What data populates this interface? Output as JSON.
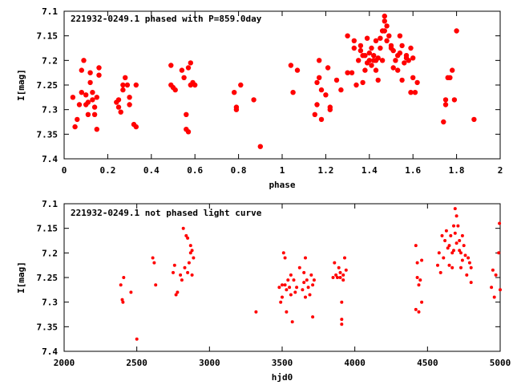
{
  "chart_data": [
    {
      "type": "scatter",
      "title": "221932-0249.1 phased with P=859.0day",
      "xlabel": "phase",
      "ylabel": "I[mag]",
      "xlim": [
        0,
        2
      ],
      "ylim": [
        7.4,
        7.1
      ],
      "x_ticks": [
        "0",
        "0.2",
        "0.4",
        "0.6",
        "0.8",
        "1",
        "1.2",
        "1.4",
        "1.6",
        "1.8",
        "2"
      ],
      "y_ticks": [
        "7.1",
        "7.15",
        "7.2",
        "7.25",
        "7.3",
        "7.35",
        "7.4"
      ],
      "y_inverted": true,
      "color": "#ff0000",
      "marker": "filled-circle-large",
      "points": [
        [
          0.04,
          7.275
        ],
        [
          0.05,
          7.335
        ],
        [
          0.06,
          7.32
        ],
        [
          0.07,
          7.29
        ],
        [
          0.08,
          7.265
        ],
        [
          0.08,
          7.22
        ],
        [
          0.09,
          7.2
        ],
        [
          0.1,
          7.27
        ],
        [
          0.1,
          7.29
        ],
        [
          0.11,
          7.285
        ],
        [
          0.11,
          7.31
        ],
        [
          0.12,
          7.225
        ],
        [
          0.12,
          7.245
        ],
        [
          0.13,
          7.265
        ],
        [
          0.13,
          7.28
        ],
        [
          0.14,
          7.295
        ],
        [
          0.14,
          7.31
        ],
        [
          0.15,
          7.275
        ],
        [
          0.15,
          7.34
        ],
        [
          0.16,
          7.215
        ],
        [
          0.16,
          7.23
        ],
        [
          0.24,
          7.285
        ],
        [
          0.25,
          7.28
        ],
        [
          0.25,
          7.295
        ],
        [
          0.26,
          7.305
        ],
        [
          0.27,
          7.26
        ],
        [
          0.27,
          7.25
        ],
        [
          0.28,
          7.235
        ],
        [
          0.29,
          7.25
        ],
        [
          0.3,
          7.275
        ],
        [
          0.3,
          7.29
        ],
        [
          0.32,
          7.33
        ],
        [
          0.33,
          7.335
        ],
        [
          0.33,
          7.25
        ],
        [
          0.49,
          7.25
        ],
        [
          0.49,
          7.21
        ],
        [
          0.5,
          7.255
        ],
        [
          0.51,
          7.26
        ],
        [
          0.54,
          7.22
        ],
        [
          0.55,
          7.235
        ],
        [
          0.56,
          7.31
        ],
        [
          0.56,
          7.34
        ],
        [
          0.57,
          7.345
        ],
        [
          0.57,
          7.215
        ],
        [
          0.58,
          7.25
        ],
        [
          0.58,
          7.205
        ],
        [
          0.59,
          7.245
        ],
        [
          0.6,
          7.25
        ],
        [
          0.78,
          7.265
        ],
        [
          0.79,
          7.295
        ],
        [
          0.79,
          7.3
        ],
        [
          0.81,
          7.25
        ],
        [
          0.87,
          7.28
        ],
        [
          0.9,
          7.375
        ],
        [
          1.04,
          7.21
        ],
        [
          1.05,
          7.265
        ],
        [
          1.07,
          7.22
        ],
        [
          1.15,
          7.31
        ],
        [
          1.16,
          7.29
        ],
        [
          1.16,
          7.245
        ],
        [
          1.17,
          7.235
        ],
        [
          1.17,
          7.2
        ],
        [
          1.18,
          7.26
        ],
        [
          1.18,
          7.32
        ],
        [
          1.2,
          7.27
        ],
        [
          1.21,
          7.215
        ],
        [
          1.22,
          7.295
        ],
        [
          1.22,
          7.3
        ],
        [
          1.25,
          7.24
        ],
        [
          1.27,
          7.26
        ],
        [
          1.3,
          7.225
        ],
        [
          1.3,
          7.15
        ],
        [
          1.32,
          7.225
        ],
        [
          1.33,
          7.175
        ],
        [
          1.33,
          7.16
        ],
        [
          1.34,
          7.25
        ],
        [
          1.35,
          7.2
        ],
        [
          1.36,
          7.18
        ],
        [
          1.36,
          7.17
        ],
        [
          1.37,
          7.19
        ],
        [
          1.37,
          7.245
        ],
        [
          1.38,
          7.22
        ],
        [
          1.38,
          7.19
        ],
        [
          1.39,
          7.205
        ],
        [
          1.39,
          7.155
        ],
        [
          1.4,
          7.2
        ],
        [
          1.4,
          7.185
        ],
        [
          1.41,
          7.175
        ],
        [
          1.41,
          7.21
        ],
        [
          1.42,
          7.2
        ],
        [
          1.42,
          7.19
        ],
        [
          1.43,
          7.22
        ],
        [
          1.43,
          7.2
        ],
        [
          1.43,
          7.16
        ],
        [
          1.44,
          7.24
        ],
        [
          1.44,
          7.195
        ],
        [
          1.45,
          7.175
        ],
        [
          1.45,
          7.155
        ],
        [
          1.46,
          7.14
        ],
        [
          1.46,
          7.2
        ],
        [
          1.47,
          7.11
        ],
        [
          1.47,
          7.12
        ],
        [
          1.47,
          7.14
        ],
        [
          1.48,
          7.13
        ],
        [
          1.48,
          7.16
        ],
        [
          1.49,
          7.15
        ],
        [
          1.5,
          7.175
        ],
        [
          1.5,
          7.17
        ],
        [
          1.51,
          7.18
        ],
        [
          1.51,
          7.215
        ],
        [
          1.52,
          7.2
        ],
        [
          1.53,
          7.22
        ],
        [
          1.53,
          7.19
        ],
        [
          1.54,
          7.185
        ],
        [
          1.54,
          7.15
        ],
        [
          1.55,
          7.17
        ],
        [
          1.55,
          7.24
        ],
        [
          1.56,
          7.205
        ],
        [
          1.57,
          7.195
        ],
        [
          1.57,
          7.19
        ],
        [
          1.58,
          7.2
        ],
        [
          1.59,
          7.265
        ],
        [
          1.59,
          7.175
        ],
        [
          1.6,
          7.195
        ],
        [
          1.6,
          7.235
        ],
        [
          1.61,
          7.265
        ],
        [
          1.62,
          7.245
        ],
        [
          1.74,
          7.325
        ],
        [
          1.75,
          7.29
        ],
        [
          1.75,
          7.28
        ],
        [
          1.76,
          7.235
        ],
        [
          1.77,
          7.235
        ],
        [
          1.78,
          7.22
        ],
        [
          1.79,
          7.28
        ],
        [
          1.8,
          7.14
        ],
        [
          1.88,
          7.32
        ]
      ]
    },
    {
      "type": "scatter",
      "title": "221932-0249.1 not phased light curve",
      "xlabel": "hjd0",
      "ylabel": "I[mag]",
      "xlim": [
        2000,
        5000
      ],
      "ylim": [
        7.4,
        7.1
      ],
      "x_ticks": [
        "2000",
        "2500",
        "3000",
        "3500",
        "4000",
        "4500",
        "5000"
      ],
      "y_ticks": [
        "7.1",
        "7.15",
        "7.2",
        "7.25",
        "7.3",
        "7.35",
        "7.4"
      ],
      "y_inverted": true,
      "color": "#ff0000",
      "marker": "filled-circle-small",
      "points": [
        [
          2390,
          7.265
        ],
        [
          2400,
          7.295
        ],
        [
          2405,
          7.3
        ],
        [
          2410,
          7.25
        ],
        [
          2460,
          7.28
        ],
        [
          2500,
          7.375
        ],
        [
          2610,
          7.21
        ],
        [
          2620,
          7.22
        ],
        [
          2630,
          7.265
        ],
        [
          2750,
          7.24
        ],
        [
          2760,
          7.225
        ],
        [
          2770,
          7.285
        ],
        [
          2780,
          7.28
        ],
        [
          2800,
          7.245
        ],
        [
          2810,
          7.255
        ],
        [
          2820,
          7.15
        ],
        [
          2830,
          7.23
        ],
        [
          2840,
          7.165
        ],
        [
          2850,
          7.17
        ],
        [
          2850,
          7.24
        ],
        [
          2860,
          7.22
        ],
        [
          2870,
          7.2
        ],
        [
          2870,
          7.185
        ],
        [
          2880,
          7.195
        ],
        [
          2880,
          7.245
        ],
        [
          2890,
          7.21
        ],
        [
          3320,
          7.32
        ],
        [
          3480,
          7.27
        ],
        [
          3490,
          7.3
        ],
        [
          3500,
          7.265
        ],
        [
          3500,
          7.29
        ],
        [
          3510,
          7.2
        ],
        [
          3520,
          7.265
        ],
        [
          3520,
          7.21
        ],
        [
          3530,
          7.275
        ],
        [
          3530,
          7.32
        ],
        [
          3540,
          7.255
        ],
        [
          3550,
          7.27
        ],
        [
          3560,
          7.245
        ],
        [
          3560,
          7.285
        ],
        [
          3570,
          7.34
        ],
        [
          3580,
          7.255
        ],
        [
          3590,
          7.28
        ],
        [
          3600,
          7.27
        ],
        [
          3620,
          7.23
        ],
        [
          3640,
          7.275
        ],
        [
          3650,
          7.26
        ],
        [
          3650,
          7.24
        ],
        [
          3660,
          7.29
        ],
        [
          3660,
          7.21
        ],
        [
          3670,
          7.255
        ],
        [
          3680,
          7.27
        ],
        [
          3690,
          7.285
        ],
        [
          3700,
          7.245
        ],
        [
          3710,
          7.33
        ],
        [
          3710,
          7.265
        ],
        [
          3720,
          7.255
        ],
        [
          3850,
          7.25
        ],
        [
          3860,
          7.22
        ],
        [
          3870,
          7.245
        ],
        [
          3880,
          7.25
        ],
        [
          3890,
          7.23
        ],
        [
          3900,
          7.24
        ],
        [
          3900,
          7.25
        ],
        [
          3910,
          7.345
        ],
        [
          3910,
          7.335
        ],
        [
          3910,
          7.3
        ],
        [
          3920,
          7.255
        ],
        [
          3920,
          7.245
        ],
        [
          3930,
          7.21
        ],
        [
          3940,
          7.235
        ],
        [
          4420,
          7.315
        ],
        [
          4420,
          7.185
        ],
        [
          4430,
          7.22
        ],
        [
          4430,
          7.25
        ],
        [
          4440,
          7.32
        ],
        [
          4440,
          7.265
        ],
        [
          4450,
          7.255
        ],
        [
          4460,
          7.215
        ],
        [
          4460,
          7.3
        ],
        [
          4570,
          7.225
        ],
        [
          4580,
          7.2
        ],
        [
          4590,
          7.24
        ],
        [
          4600,
          7.165
        ],
        [
          4610,
          7.21
        ],
        [
          4620,
          7.175
        ],
        [
          4630,
          7.155
        ],
        [
          4640,
          7.19
        ],
        [
          4650,
          7.225
        ],
        [
          4650,
          7.185
        ],
        [
          4660,
          7.165
        ],
        [
          4670,
          7.2
        ],
        [
          4670,
          7.23
        ],
        [
          4680,
          7.145
        ],
        [
          4680,
          7.195
        ],
        [
          4690,
          7.11
        ],
        [
          4690,
          7.16
        ],
        [
          4700,
          7.125
        ],
        [
          4700,
          7.18
        ],
        [
          4710,
          7.145
        ],
        [
          4720,
          7.195
        ],
        [
          4720,
          7.175
        ],
        [
          4730,
          7.2
        ],
        [
          4730,
          7.23
        ],
        [
          4740,
          7.165
        ],
        [
          4740,
          7.215
        ],
        [
          4750,
          7.185
        ],
        [
          4760,
          7.205
        ],
        [
          4770,
          7.245
        ],
        [
          4780,
          7.21
        ],
        [
          4790,
          7.22
        ],
        [
          4800,
          7.23
        ],
        [
          4800,
          7.26
        ],
        [
          4940,
          7.27
        ],
        [
          4950,
          7.235
        ],
        [
          4960,
          7.29
        ],
        [
          4970,
          7.245
        ],
        [
          4990,
          7.2
        ],
        [
          4995,
          7.14
        ],
        [
          5000,
          7.275
        ]
      ]
    }
  ]
}
